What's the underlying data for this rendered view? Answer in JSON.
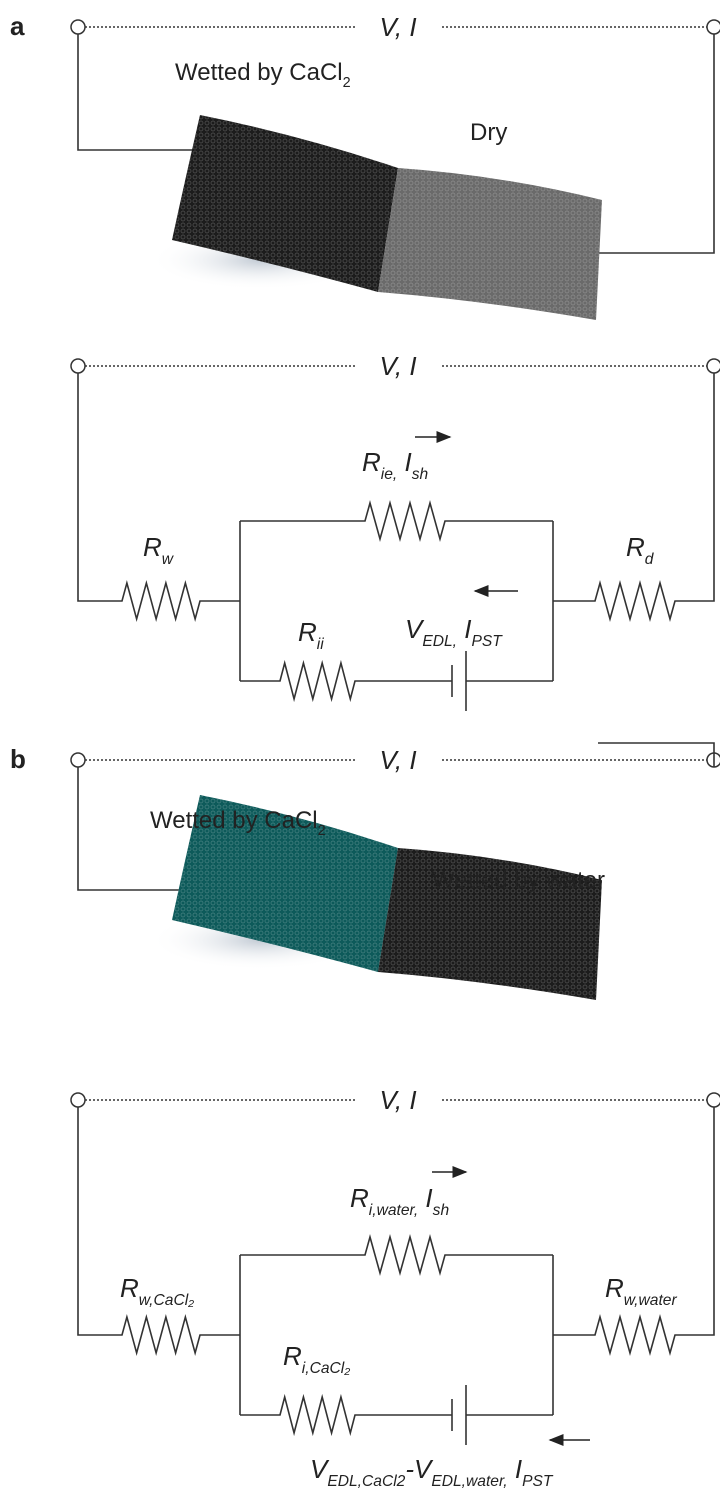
{
  "panels": [
    {
      "label": "a",
      "photo": {
        "terminal_label": "V, I",
        "left_label": [
          {
            "base": "Wetted by CaCl",
            "sub": "2"
          }
        ],
        "right_label": "Dry"
      },
      "circuit": {
        "terminal_label": "V, I",
        "top_branch": [
          {
            "base": "R",
            "sub": "ie,"
          },
          {
            "base": " I",
            "sub": "sh"
          }
        ],
        "left_resistor": [
          {
            "base": "R",
            "sub": "w"
          }
        ],
        "right_resistor": [
          {
            "base": "R",
            "sub": "d"
          }
        ],
        "bottom_resistor": [
          {
            "base": "R",
            "sub": "ii"
          }
        ],
        "source": [
          {
            "base": "V",
            "sub": "EDL,"
          },
          {
            "base": " I",
            "sub": "PST"
          }
        ]
      }
    },
    {
      "label": "b",
      "photo": {
        "terminal_label": "V, I",
        "left_label": [
          {
            "base": "Wetted by CaCl",
            "sub": "2"
          }
        ],
        "right_label": "Wetted by water"
      },
      "circuit": {
        "terminal_label": "V, I",
        "top_branch": [
          {
            "base": "R",
            "sub": "i,water,"
          },
          {
            "base": " I",
            "sub": "sh"
          }
        ],
        "left_resistor": [
          {
            "base": "R",
            "sub": "w,CaCl₂"
          }
        ],
        "right_resistor": [
          {
            "base": "R",
            "sub": "w,water"
          }
        ],
        "bottom_resistor": [
          {
            "base": "R",
            "sub": "i,CaCl₂"
          }
        ],
        "source": [
          {
            "base": "V",
            "sub": "EDL,CaCl2"
          },
          {
            "base": "-V",
            "sub": "EDL,water,"
          },
          {
            "base": " I",
            "sub": "PST"
          }
        ]
      }
    }
  ]
}
